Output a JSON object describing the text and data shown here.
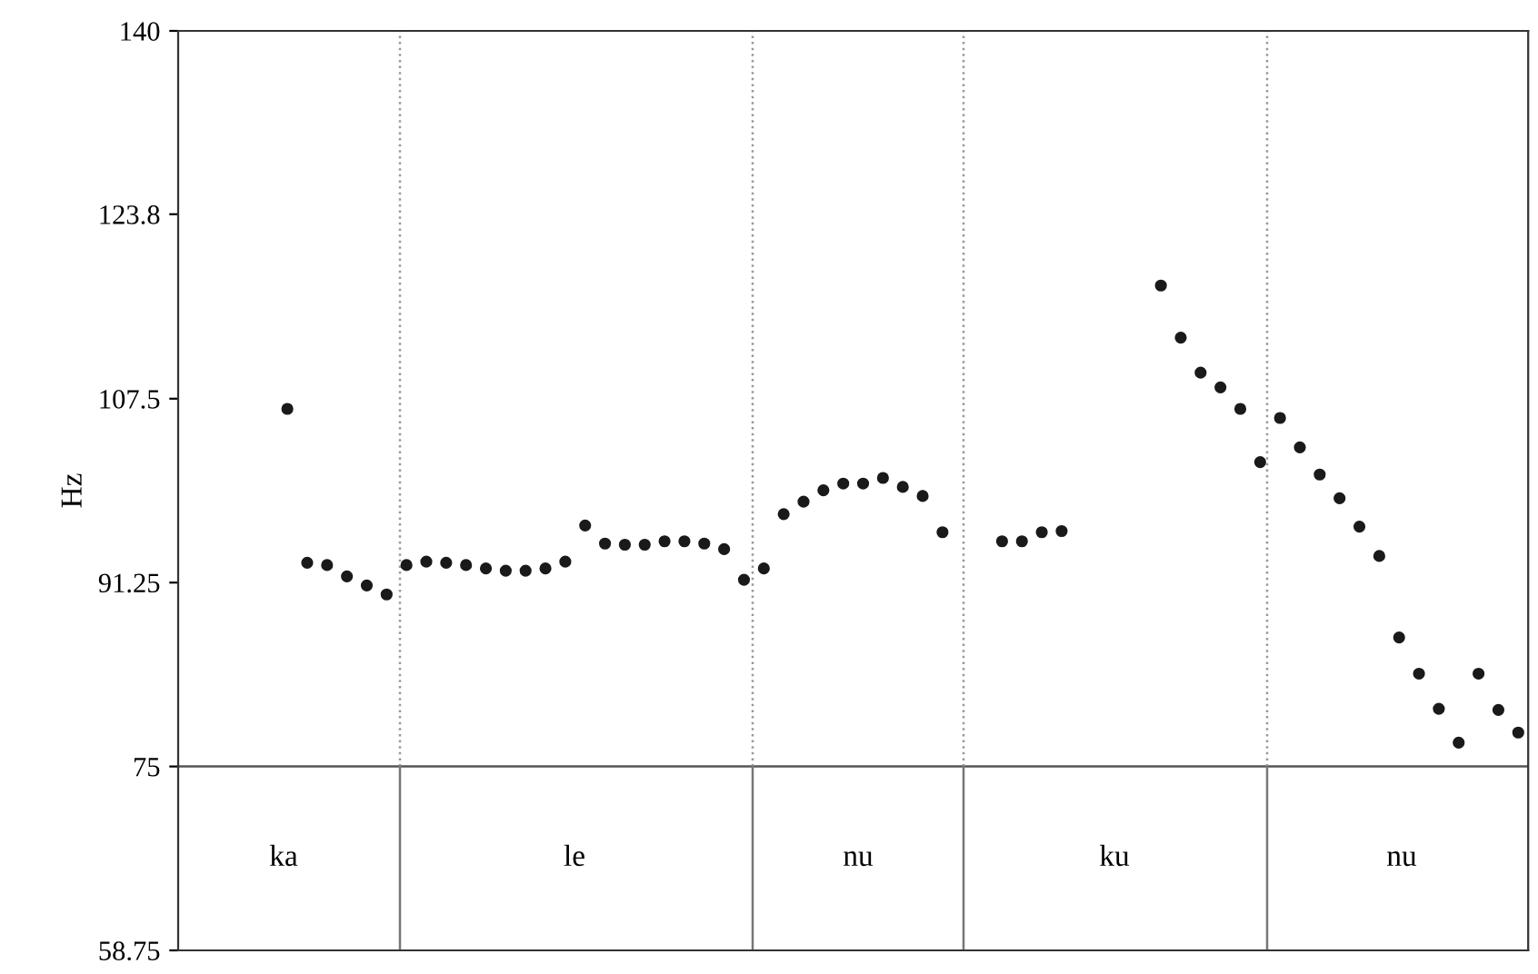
{
  "chart_data": {
    "type": "scatter",
    "ylabel": "Hz",
    "categories": [
      null,
      null,
      null,
      null,
      null,
      null,
      null,
      null,
      null,
      null,
      null,
      null,
      null,
      null,
      null,
      null,
      null,
      null,
      null,
      null,
      null,
      null,
      null,
      null,
      null,
      null,
      null,
      null,
      null,
      null,
      null,
      null,
      null,
      null,
      null,
      null,
      null,
      null,
      null,
      null,
      null,
      null,
      null,
      null,
      null,
      null,
      null,
      null,
      null,
      null,
      null,
      null,
      null,
      null,
      null,
      null,
      null,
      null,
      null,
      null,
      null,
      null,
      null,
      null,
      null,
      null,
      null,
      null
    ],
    "series": [
      {
        "color": "#1a1a1a",
        "values": [
          null,
          null,
          null,
          null,
          null,
          106.6,
          93.0,
          92.8,
          91.8,
          91.0,
          90.2,
          92.8,
          93.1,
          93.0,
          92.8,
          92.5,
          92.3,
          92.3,
          92.5,
          93.1,
          96.3,
          94.7,
          94.6,
          94.6,
          94.9,
          94.9,
          94.7,
          94.2,
          91.5,
          92.5,
          97.3,
          98.4,
          99.4,
          100.0,
          100.0,
          100.5,
          99.7,
          98.9,
          95.7,
          null,
          null,
          94.9,
          94.9,
          95.7,
          95.8,
          null,
          null,
          null,
          null,
          117.5,
          112.9,
          109.8,
          108.5,
          106.6,
          101.9,
          105.8,
          103.2,
          100.8,
          98.7,
          96.2,
          93.6,
          86.4,
          83.2,
          80.1,
          77.1,
          83.2,
          80.0,
          78.0
        ]
      }
    ],
    "marker": "circle",
    "ylim": [
      58.75,
      140
    ],
    "yticks": [
      58.75,
      75,
      91.25,
      107.5,
      123.8,
      140
    ],
    "tick_labels": "y",
    "ref_lines": [
      {
        "axis": "y",
        "value": 75,
        "color": "#555555",
        "line_style": "solid"
      }
    ],
    "annotations": [
      "ka",
      "le",
      "nu",
      "ku",
      "nu"
    ]
  }
}
